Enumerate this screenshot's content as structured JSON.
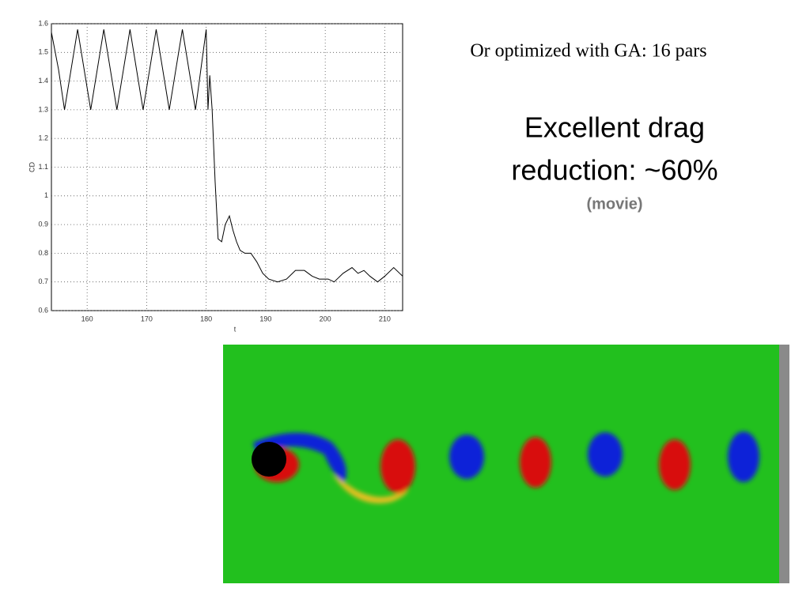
{
  "chart_data": {
    "type": "line",
    "x_label": "t",
    "y_label": "CD",
    "x": [
      154,
      155.2,
      156.2,
      157.3,
      158.4,
      159.5,
      160.6,
      161.7,
      162.8,
      163.9,
      165.0,
      166.1,
      167.2,
      168.3,
      169.4,
      170.5,
      171.6,
      172.7,
      173.8,
      174.9,
      176.0,
      177.1,
      178.2,
      179.1,
      180.0,
      180.3,
      180.6,
      181.0,
      181.5,
      182.0,
      182.6,
      183.2,
      183.9,
      184.5,
      185.1,
      185.7,
      186.5,
      187.5,
      188.5,
      189.5,
      190.5,
      192,
      193.5,
      195,
      196.5,
      197.8,
      199,
      200.5,
      201.5,
      203,
      204.5,
      205.5,
      206.5,
      207.5,
      208.8,
      210,
      211.5,
      212.5,
      213
    ],
    "values": [
      1.57,
      1.44,
      1.3,
      1.44,
      1.58,
      1.44,
      1.3,
      1.44,
      1.58,
      1.44,
      1.3,
      1.44,
      1.58,
      1.44,
      1.3,
      1.44,
      1.58,
      1.44,
      1.3,
      1.44,
      1.58,
      1.44,
      1.3,
      1.44,
      1.58,
      1.3,
      1.42,
      1.3,
      1.05,
      0.85,
      0.84,
      0.9,
      0.93,
      0.88,
      0.84,
      0.81,
      0.8,
      0.8,
      0.77,
      0.73,
      0.71,
      0.7,
      0.71,
      0.74,
      0.74,
      0.72,
      0.71,
      0.71,
      0.7,
      0.73,
      0.75,
      0.73,
      0.74,
      0.72,
      0.7,
      0.72,
      0.75,
      0.73,
      0.72
    ],
    "color": "#000000",
    "xlim": [
      154,
      213
    ],
    "xticks": [
      160,
      170,
      180,
      190,
      200,
      210
    ],
    "ylim": [
      0.6,
      1.6
    ],
    "yticks": [
      0.6,
      0.7,
      0.8,
      0.9,
      1,
      1.1,
      1.2,
      1.3,
      1.4,
      1.5,
      1.6
    ],
    "grid": true
  },
  "texts": {
    "subtitle": "Or optimized with GA: 16 pars",
    "headline_1": "Excellent drag",
    "headline_2": "reduction: ~60%",
    "link": "(movie)"
  }
}
